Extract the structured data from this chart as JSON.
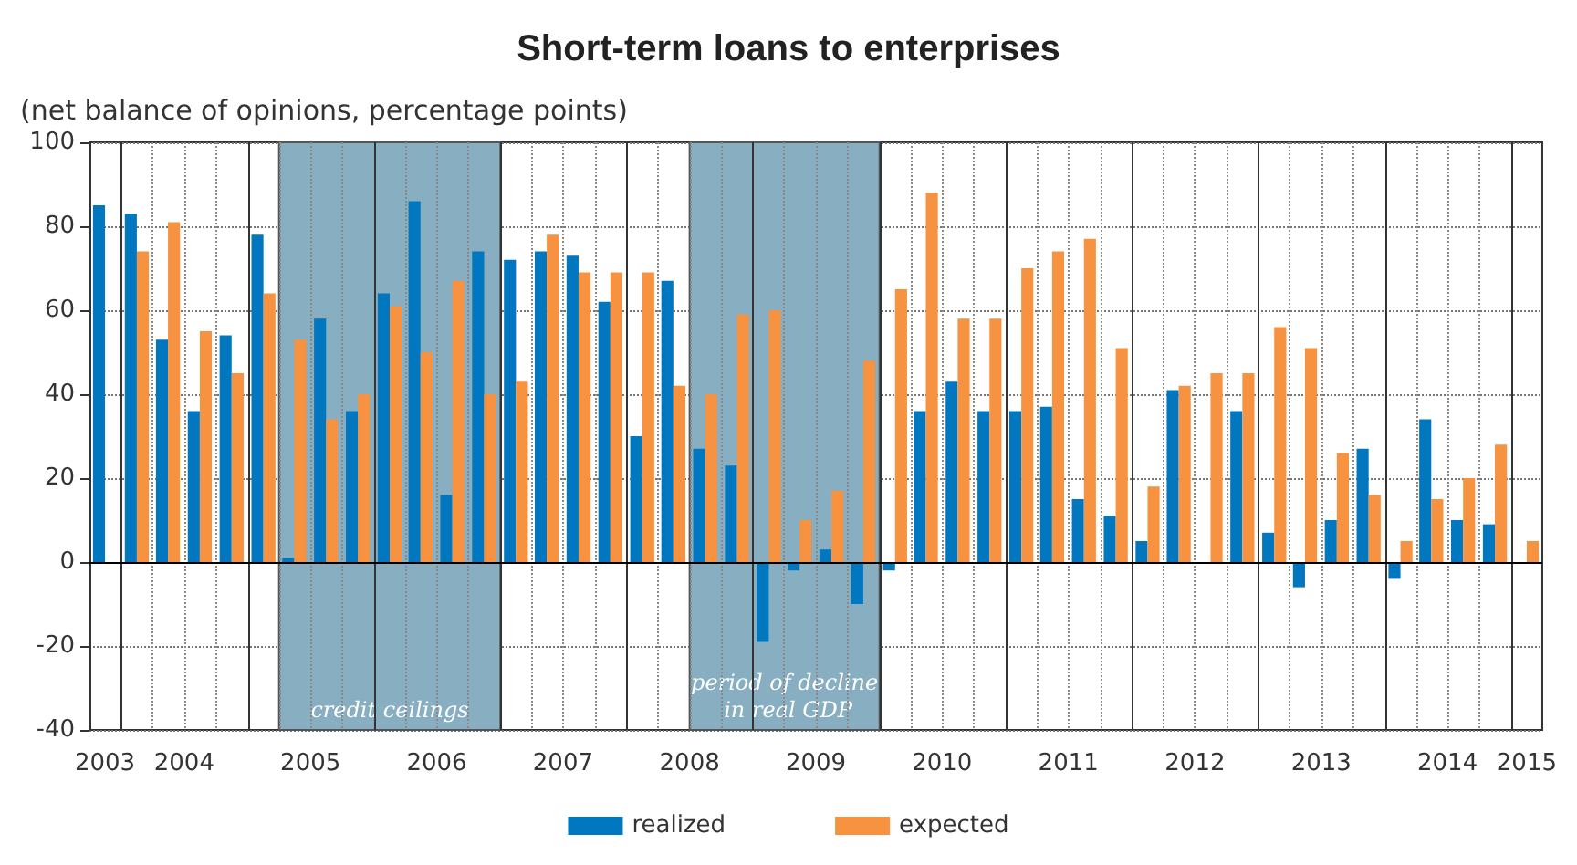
{
  "chart_data": {
    "type": "bar",
    "title": "Short-term loans to enterprises",
    "ylabel": "(net balance of opinions, percentage points)",
    "x": [
      "2003-11-15",
      "2004-02-15",
      "2004-05-15",
      "2004-08-15",
      "2004-11-15",
      "2005-02-15",
      "2005-05-15",
      "2005-08-15",
      "2005-11-15",
      "2006-02-15",
      "2006-05-15",
      "2006-08-15",
      "2006-11-15",
      "2007-02-15",
      "2007-05-15",
      "2007-08-15",
      "2007-11-15",
      "2008-02-15",
      "2008-05-15",
      "2008-08-15",
      "2008-11-15",
      "2009-02-15",
      "2009-05-15",
      "2009-08-15",
      "2009-11-15",
      "2010-02-15",
      "2010-05-15",
      "2010-08-15",
      "2010-11-15",
      "2011-02-15",
      "2011-05-15",
      "2011-08-15",
      "2011-11-15",
      "2012-02-15",
      "2012-05-15",
      "2012-08-15",
      "2012-11-15",
      "2013-02-15",
      "2013-05-15",
      "2013-08-15",
      "2013-11-15",
      "2014-02-15",
      "2014-05-15",
      "2014-08-15",
      "2014-11-15",
      "2015-02-15"
    ],
    "series": [
      {
        "name": "realized",
        "color": "#0077bf",
        "values": [
          85,
          83,
          53,
          36,
          54,
          78,
          1,
          58,
          36,
          64,
          86,
          16,
          74,
          72,
          74,
          73,
          62,
          30,
          67,
          27,
          23,
          -19,
          -2,
          3,
          -10,
          -2,
          36,
          43,
          36,
          36,
          37,
          15,
          11,
          5,
          41,
          null,
          36,
          7,
          -6,
          10,
          27,
          -4,
          34,
          10,
          9,
          null
        ]
      },
      {
        "name": "expected",
        "color": "#f79240",
        "values": [
          null,
          74,
          81,
          55,
          45,
          64,
          53,
          34,
          40,
          61,
          50,
          67,
          40,
          43,
          78,
          69,
          69,
          69,
          42,
          40,
          59,
          60,
          10,
          17,
          48,
          65,
          88,
          58,
          58,
          70,
          74,
          77,
          51,
          18,
          42,
          45,
          45,
          56,
          51,
          26,
          16,
          5,
          15,
          20,
          28,
          5
        ]
      }
    ],
    "xlim": [
      "2003-10-01",
      "2015-04-01"
    ],
    "xticks": [
      {
        "value": "2003-11-15",
        "label": "2003"
      },
      {
        "value": "2004-01-01",
        "label": null
      },
      {
        "value": "2004-04-01",
        "label": null
      },
      {
        "value": "2004-07-01",
        "label": "2004"
      },
      {
        "value": "2004-10-01",
        "label": null
      },
      {
        "value": "2005-01-01",
        "label": null
      },
      {
        "value": "2005-04-01",
        "label": null
      },
      {
        "value": "2005-07-01",
        "label": "2005"
      },
      {
        "value": "2005-10-01",
        "label": null
      },
      {
        "value": "2006-01-01",
        "label": null
      },
      {
        "value": "2006-04-01",
        "label": null
      },
      {
        "value": "2006-07-01",
        "label": "2006"
      },
      {
        "value": "2006-10-01",
        "label": null
      },
      {
        "value": "2007-01-01",
        "label": null
      },
      {
        "value": "2007-04-01",
        "label": null
      },
      {
        "value": "2007-07-01",
        "label": "2007"
      },
      {
        "value": "2007-10-01",
        "label": null
      },
      {
        "value": "2008-01-01",
        "label": null
      },
      {
        "value": "2008-04-01",
        "label": null
      },
      {
        "value": "2008-07-01",
        "label": "2008"
      },
      {
        "value": "2008-10-01",
        "label": null
      },
      {
        "value": "2009-01-01",
        "label": null
      },
      {
        "value": "2009-04-01",
        "label": null
      },
      {
        "value": "2009-07-01",
        "label": "2009"
      },
      {
        "value": "2009-10-01",
        "label": null
      },
      {
        "value": "2010-01-01",
        "label": null
      },
      {
        "value": "2010-04-01",
        "label": null
      },
      {
        "value": "2010-07-01",
        "label": "2010"
      },
      {
        "value": "2010-10-01",
        "label": null
      },
      {
        "value": "2011-01-01",
        "label": null
      },
      {
        "value": "2011-04-01",
        "label": null
      },
      {
        "value": "2011-07-01",
        "label": "2011"
      },
      {
        "value": "2011-10-01",
        "label": null
      },
      {
        "value": "2012-01-01",
        "label": null
      },
      {
        "value": "2012-04-01",
        "label": null
      },
      {
        "value": "2012-07-01",
        "label": "2012"
      },
      {
        "value": "2012-10-01",
        "label": null
      },
      {
        "value": "2013-01-01",
        "label": null
      },
      {
        "value": "2013-04-01",
        "label": null
      },
      {
        "value": "2013-07-01",
        "label": "2013"
      },
      {
        "value": "2013-10-01",
        "label": null
      },
      {
        "value": "2014-01-01",
        "label": null
      },
      {
        "value": "2014-04-01",
        "label": null
      },
      {
        "value": "2014-07-01",
        "label": "2014"
      },
      {
        "value": "2014-10-01",
        "label": null
      },
      {
        "value": "2015-01-01",
        "label": null
      },
      {
        "value": "2015-02-15",
        "label": "2015"
      }
    ],
    "ylim": [
      -40,
      100
    ],
    "yticks": [
      -40,
      -20,
      0,
      20,
      40,
      60,
      80,
      100
    ],
    "ref_lines": [
      {
        "axis": "y",
        "value": 0,
        "color": "#000000"
      }
    ],
    "bands": [
      {
        "axis": "x",
        "from": "2005-04-01",
        "to": "2007-01-01",
        "label": "credit ceilings",
        "color": "#87aec1"
      },
      {
        "axis": "x",
        "from": "2008-07-01",
        "to": "2010-01-01",
        "label": "period of decline in real GDP",
        "color": "#87aec1"
      }
    ],
    "grid": true,
    "legend": "bottom"
  }
}
